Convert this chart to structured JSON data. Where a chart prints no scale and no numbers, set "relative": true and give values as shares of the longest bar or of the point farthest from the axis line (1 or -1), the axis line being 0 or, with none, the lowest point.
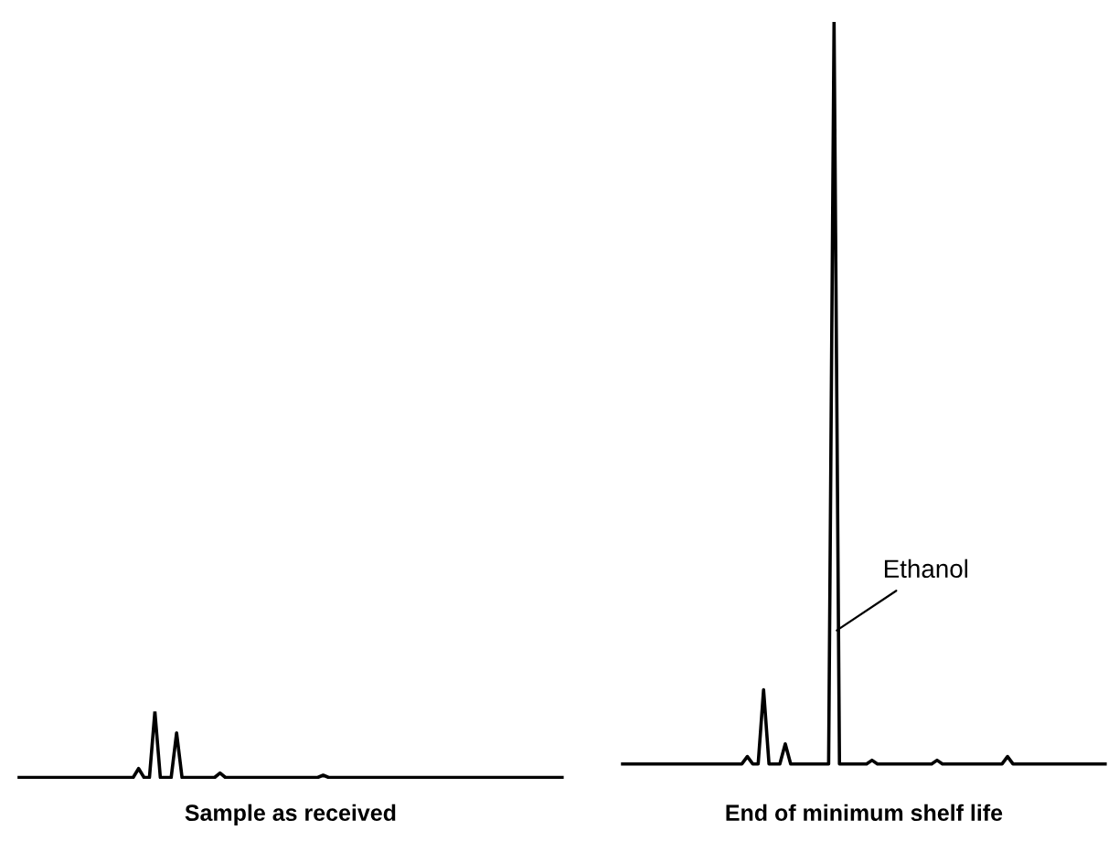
{
  "chart_data": [
    {
      "type": "line",
      "relative": true,
      "marker": "none",
      "line_style": "solid",
      "xlabel": "Sample as received",
      "categories": [
        null,
        null,
        null,
        null,
        null,
        null,
        null,
        null,
        null,
        null,
        null,
        null,
        null,
        null,
        null,
        null,
        null,
        null,
        null,
        null,
        null,
        null,
        null,
        null,
        null,
        null,
        null,
        null,
        null,
        null,
        null,
        null,
        null,
        null,
        null,
        null,
        null,
        null,
        null,
        null,
        null,
        null,
        null,
        null,
        null,
        null,
        null,
        null,
        null,
        null,
        null,
        null,
        null,
        null,
        null,
        null,
        null,
        null,
        null,
        null,
        null,
        null,
        null,
        null,
        null,
        null,
        null,
        null,
        null,
        null,
        null,
        null,
        null,
        null,
        null,
        null,
        null,
        null,
        null,
        null,
        null,
        null,
        null,
        null,
        null,
        null,
        null,
        null,
        null,
        null,
        null,
        null,
        null,
        null,
        null,
        null,
        null,
        null,
        null,
        null,
        null
      ],
      "series": [
        {
          "color": "#000000",
          "values": [
            0,
            0,
            0,
            0,
            0,
            0,
            0,
            0,
            0,
            0,
            0,
            0,
            0,
            0,
            0,
            0,
            0,
            0,
            0,
            0,
            0,
            0,
            0.135,
            0,
            0,
            1,
            0,
            0,
            0,
            0.674,
            0,
            0,
            0,
            0,
            0,
            0,
            0,
            0.067,
            0,
            0,
            0,
            0,
            0,
            0,
            0,
            0,
            0,
            0,
            0,
            0,
            0,
            0,
            0,
            0,
            0,
            0,
            0.034,
            0,
            0,
            0,
            0,
            0,
            0,
            0,
            0,
            0,
            0,
            0,
            0,
            0,
            0,
            0,
            0,
            0,
            0,
            0,
            0,
            0,
            0,
            0,
            0,
            0,
            0,
            0,
            0,
            0,
            0,
            0,
            0,
            0,
            0,
            0,
            0,
            0,
            0,
            0,
            0,
            0,
            0,
            0,
            0
          ]
        }
      ]
    },
    {
      "type": "line",
      "relative": true,
      "marker": "none",
      "line_style": "solid",
      "xlabel": "End of minimum shelf life",
      "annotations": [
        "Ethanol"
      ],
      "categories": [
        null,
        null,
        null,
        null,
        null,
        null,
        null,
        null,
        null,
        null,
        null,
        null,
        null,
        null,
        null,
        null,
        null,
        null,
        null,
        null,
        null,
        null,
        null,
        null,
        null,
        null,
        null,
        null,
        null,
        null,
        null,
        null,
        null,
        null,
        null,
        null,
        null,
        null,
        null,
        null,
        null,
        null,
        null,
        null,
        null,
        null,
        null,
        null,
        null,
        null,
        null,
        null,
        null,
        null,
        null,
        null,
        null,
        null,
        null,
        null,
        null,
        null,
        null,
        null,
        null,
        null,
        null,
        null,
        null,
        null,
        null,
        null,
        null,
        null,
        null,
        null,
        null,
        null,
        null,
        null,
        null,
        null,
        null,
        null,
        null,
        null,
        null,
        null,
        null,
        null
      ],
      "series": [
        {
          "color": "#000000",
          "values": [
            0,
            0,
            0,
            0,
            0,
            0,
            0,
            0,
            0,
            0,
            0,
            0,
            0,
            0,
            0,
            0,
            0,
            0,
            0,
            0,
            0,
            0,
            0,
            0.01,
            0,
            0,
            0.1,
            0,
            0,
            0,
            0.027,
            0,
            0,
            0,
            0,
            0,
            0,
            0,
            0,
            1,
            0,
            0,
            0,
            0,
            0,
            0,
            0.005,
            0,
            0,
            0,
            0,
            0,
            0,
            0,
            0,
            0,
            0,
            0,
            0.005,
            0,
            0,
            0,
            0,
            0,
            0,
            0,
            0,
            0,
            0,
            0,
            0,
            0.01,
            0,
            0,
            0,
            0,
            0,
            0,
            0,
            0,
            0,
            0,
            0,
            0,
            0,
            0,
            0,
            0,
            0,
            0
          ]
        }
      ]
    }
  ]
}
